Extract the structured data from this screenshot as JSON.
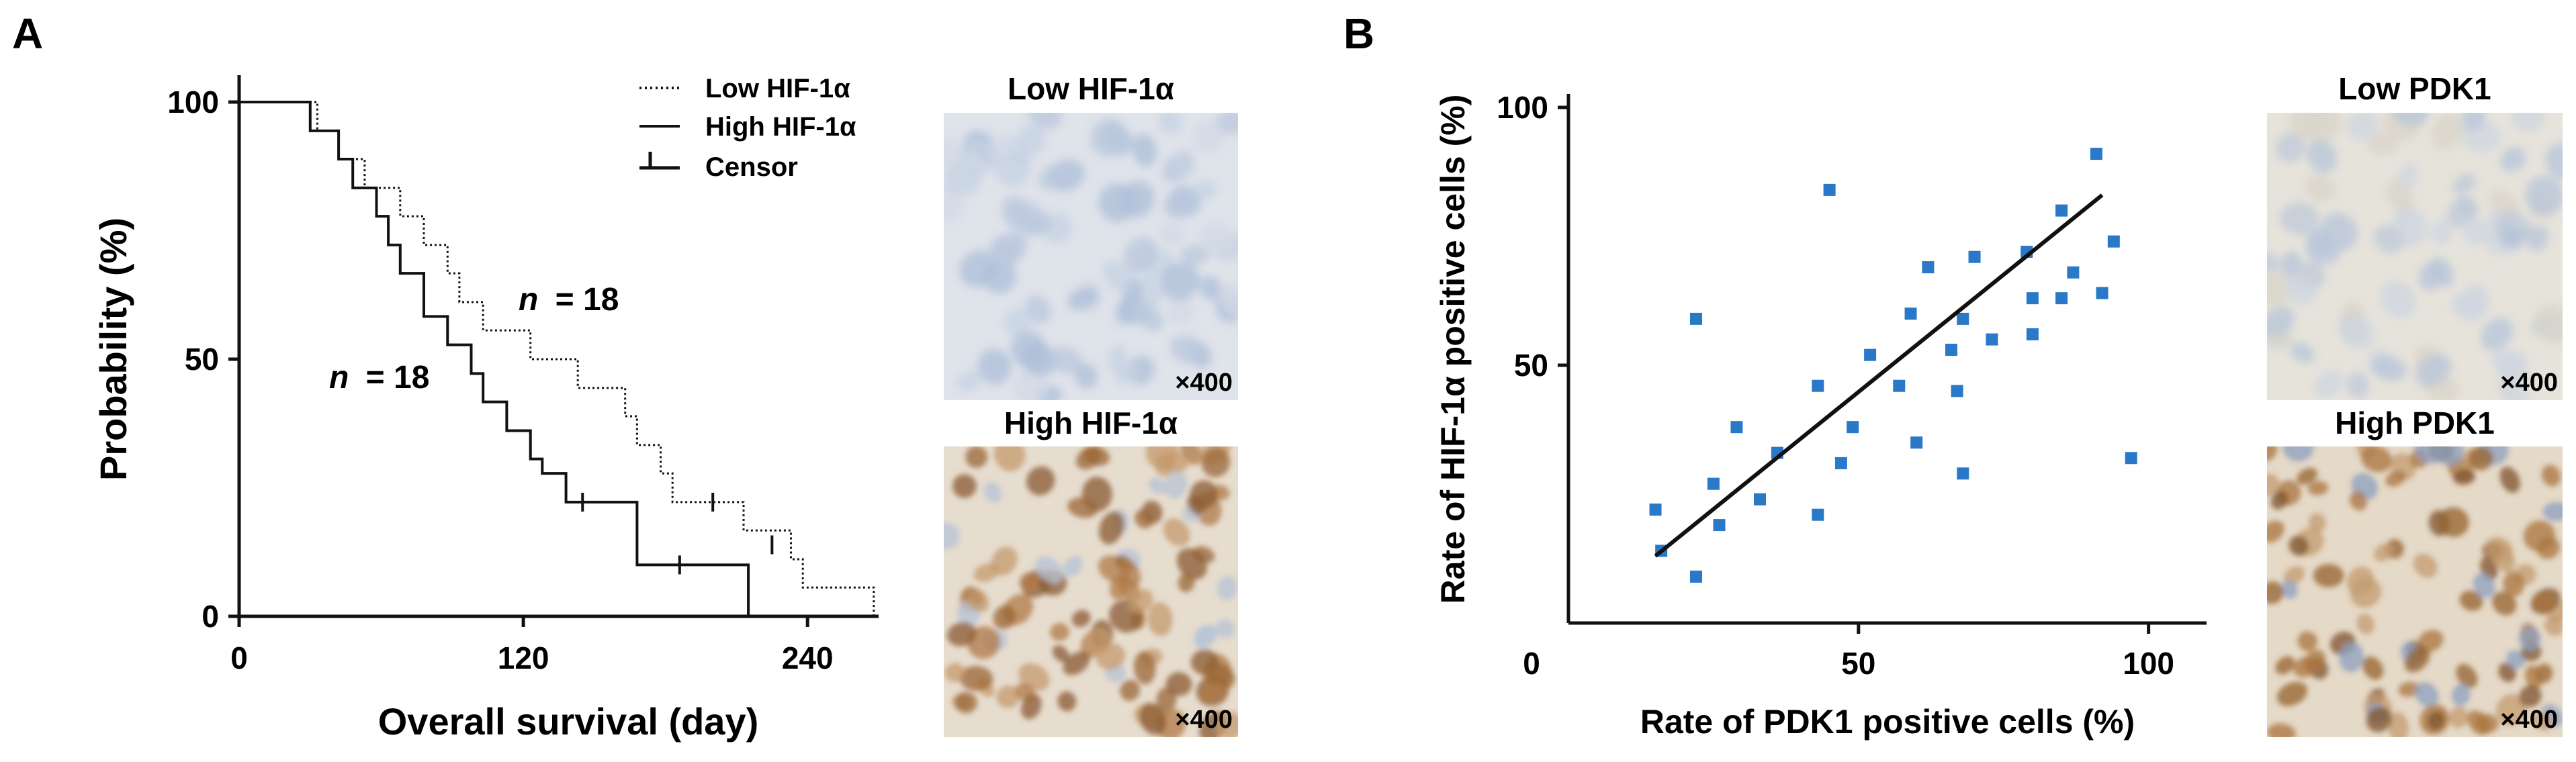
{
  "panel_a": {
    "letter": "A",
    "legend": {
      "low": "Low HIF-1α",
      "high": "High HIF-1α",
      "censor": "Censor"
    },
    "annotations": {
      "n_low": "= 18",
      "n_high": "= 18",
      "n_italic": "n"
    }
  },
  "panel_b": {
    "letter": "B"
  },
  "micrographs": {
    "low_hif": {
      "title": "Low HIF-1α",
      "magnification": "×400"
    },
    "high_hif": {
      "title": "High HIF-1α",
      "magnification": "×400"
    },
    "low_pdk1": {
      "title": "Low PDK1",
      "magnification": "×400"
    },
    "high_pdk1": {
      "title": "High PDK1",
      "magnification": "×400"
    }
  },
  "colors": {
    "scatter": "#2a78c8",
    "line": "#111111",
    "stain_low": "#cdd6e4",
    "stain_high": "#b98c5c"
  },
  "chart_data": [
    {
      "type": "line",
      "chart_kind": "kaplan-meier step",
      "xlabel": "Overall survival (day)",
      "ylabel": "Probability (%)",
      "xlim": [
        0,
        270
      ],
      "ylim": [
        0,
        100
      ],
      "x_ticks": [
        0,
        120,
        240
      ],
      "y_ticks": [
        0,
        50,
        100
      ],
      "x_tick_labels": [
        "0",
        "120",
        "240"
      ],
      "y_tick_labels": [
        "0",
        "50",
        "100"
      ],
      "series": [
        {
          "name": "Low HIF-1α",
          "style": "dotted",
          "steps": [
            [
              0,
              100
            ],
            [
              33,
              100
            ],
            [
              33,
              94.4
            ],
            [
              42,
              94.4
            ],
            [
              42,
              88.9
            ],
            [
              53,
              88.9
            ],
            [
              53,
              83.3
            ],
            [
              68,
              83.3
            ],
            [
              68,
              77.8
            ],
            [
              78,
              77.8
            ],
            [
              78,
              72.2
            ],
            [
              88,
              72.2
            ],
            [
              88,
              66.7
            ],
            [
              93,
              66.7
            ],
            [
              93,
              61.1
            ],
            [
              103,
              61.1
            ],
            [
              103,
              55.6
            ],
            [
              123,
              55.6
            ],
            [
              123,
              50
            ],
            [
              143,
              50
            ],
            [
              143,
              44.4
            ],
            [
              163,
              44.4
            ],
            [
              163,
              38.9
            ],
            [
              168,
              38.9
            ],
            [
              168,
              33.3
            ],
            [
              178,
              33.3
            ],
            [
              178,
              27.8
            ],
            [
              183,
              27.8
            ],
            [
              183,
              22.2
            ],
            [
              213,
              22.2
            ],
            [
              213,
              16.7
            ],
            [
              233,
              16.7
            ],
            [
              233,
              11.1
            ],
            [
              238,
              11.1
            ],
            [
              238,
              5.6
            ],
            [
              268,
              5.6
            ],
            [
              268,
              0
            ]
          ],
          "censor": [
            [
              200,
              22.2
            ],
            [
              225,
              13.9
            ]
          ]
        },
        {
          "name": "High HIF-1α",
          "style": "solid",
          "steps": [
            [
              0,
              100
            ],
            [
              30,
              100
            ],
            [
              30,
              94.4
            ],
            [
              42,
              94.4
            ],
            [
              42,
              88.9
            ],
            [
              48,
              88.9
            ],
            [
              48,
              83.3
            ],
            [
              58,
              83.3
            ],
            [
              58,
              77.8
            ],
            [
              63,
              77.8
            ],
            [
              63,
              72.2
            ],
            [
              68,
              72.2
            ],
            [
              68,
              66.7
            ],
            [
              78,
              66.7
            ],
            [
              78,
              58.3
            ],
            [
              88,
              58.3
            ],
            [
              88,
              52.8
            ],
            [
              98,
              52.8
            ],
            [
              98,
              47.2
            ],
            [
              103,
              47.2
            ],
            [
              103,
              41.7
            ],
            [
              113,
              41.7
            ],
            [
              113,
              36.1
            ],
            [
              123,
              36.1
            ],
            [
              123,
              30.6
            ],
            [
              128,
              30.6
            ],
            [
              128,
              27.8
            ],
            [
              138,
              27.8
            ],
            [
              138,
              22.2
            ],
            [
              168,
              22.2
            ],
            [
              168,
              10
            ],
            [
              215,
              10
            ],
            [
              215,
              0
            ]
          ],
          "censor": [
            [
              145,
              22.2
            ],
            [
              186,
              10
            ]
          ]
        }
      ]
    },
    {
      "type": "scatter",
      "xlabel": "Rate of PDK1 positive cells (%)",
      "ylabel": "Rate of HIF-1α positive cells (%)",
      "xlim": [
        0,
        110
      ],
      "ylim": [
        0,
        100
      ],
      "x_ticks": [
        50,
        100
      ],
      "y_ticks": [
        50,
        100
      ],
      "x_tick_labels": [
        "50",
        "100"
      ],
      "y_tick_labels": [
        "50",
        "100"
      ],
      "origin_label": "0",
      "points": [
        [
          15,
          22
        ],
        [
          16,
          14
        ],
        [
          22,
          9
        ],
        [
          22,
          59
        ],
        [
          25,
          27
        ],
        [
          26,
          19
        ],
        [
          29,
          38
        ],
        [
          33,
          24
        ],
        [
          36,
          33
        ],
        [
          43,
          46
        ],
        [
          43,
          21
        ],
        [
          45,
          84
        ],
        [
          47,
          31
        ],
        [
          49,
          38
        ],
        [
          52,
          52
        ],
        [
          57,
          46
        ],
        [
          59,
          60
        ],
        [
          60,
          35
        ],
        [
          62,
          69
        ],
        [
          66,
          53
        ],
        [
          67,
          45
        ],
        [
          68,
          29
        ],
        [
          68,
          59
        ],
        [
          70,
          71
        ],
        [
          73,
          55
        ],
        [
          79,
          72
        ],
        [
          80,
          56
        ],
        [
          80,
          63
        ],
        [
          85,
          63
        ],
        [
          85,
          80
        ],
        [
          87,
          68
        ],
        [
          91,
          91
        ],
        [
          92,
          64
        ],
        [
          94,
          74
        ],
        [
          97,
          32
        ]
      ],
      "regression": {
        "x": [
          15,
          92
        ],
        "y": [
          13,
          83
        ]
      }
    }
  ]
}
